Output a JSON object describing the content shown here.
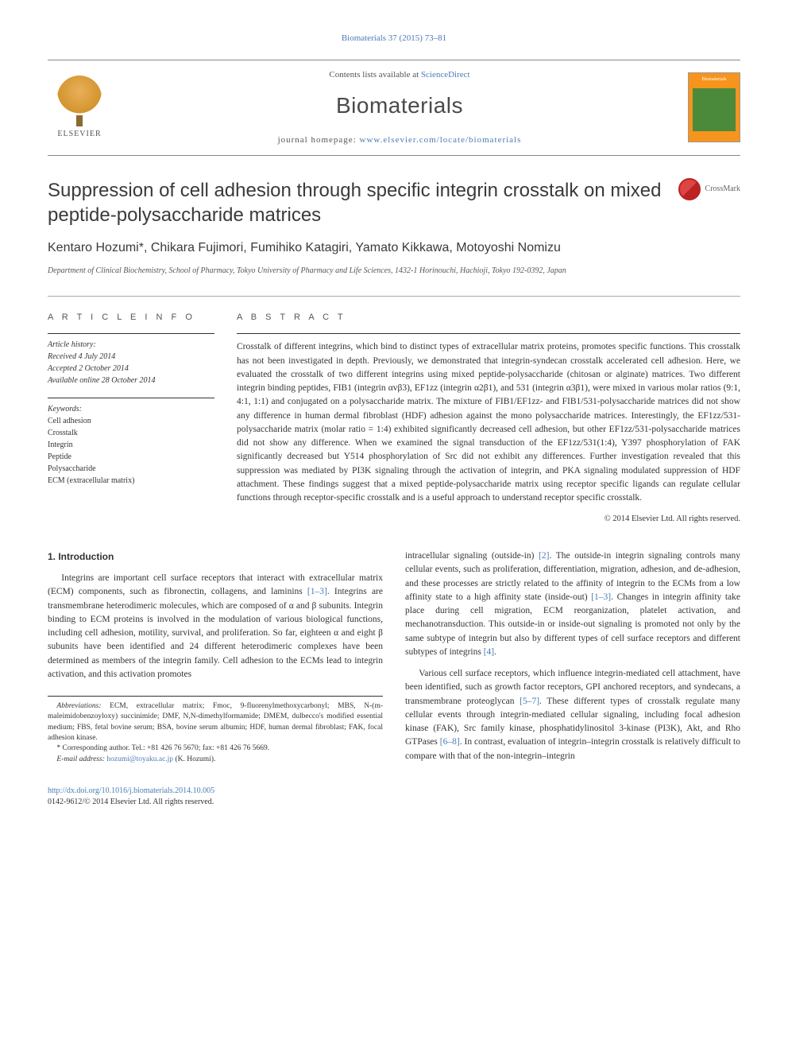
{
  "citation": "Biomaterials 37 (2015) 73–81",
  "header": {
    "contents_prefix": "Contents lists available at ",
    "contents_link": "ScienceDirect",
    "journal": "Biomaterials",
    "homepage_prefix": "journal homepage: ",
    "homepage_link": "www.elsevier.com/locate/biomaterials",
    "publisher": "ELSEVIER",
    "cover_label": "Biomaterials"
  },
  "article": {
    "title": "Suppression of cell adhesion through specific integrin crosstalk on mixed peptide-polysaccharide matrices",
    "crossmark": "CrossMark",
    "authors": "Kentaro Hozumi*, Chikara Fujimori, Fumihiko Katagiri, Yamato Kikkawa, Motoyoshi Nomizu",
    "affiliation": "Department of Clinical Biochemistry, School of Pharmacy, Tokyo University of Pharmacy and Life Sciences, 1432-1 Horinouchi, Hachioji, Tokyo 192-0392, Japan"
  },
  "info": {
    "heading": "A R T I C L E   I N F O",
    "history_label": "Article history:",
    "received": "Received 4 July 2014",
    "accepted": "Accepted 2 October 2014",
    "online": "Available online 28 October 2014",
    "keywords_label": "Keywords:",
    "keywords": [
      "Cell adhesion",
      "Crosstalk",
      "Integrin",
      "Peptide",
      "Polysaccharide",
      "ECM (extracellular matrix)"
    ]
  },
  "abstract": {
    "heading": "A B S T R A C T",
    "text": "Crosstalk of different integrins, which bind to distinct types of extracellular matrix proteins, promotes specific functions. This crosstalk has not been investigated in depth. Previously, we demonstrated that integrin-syndecan crosstalk accelerated cell adhesion. Here, we evaluated the crosstalk of two different integrins using mixed peptide-polysaccharide (chitosan or alginate) matrices. Two different integrin binding peptides, FIB1 (integrin αvβ3), EF1zz (integrin α2β1), and 531 (integrin α3β1), were mixed in various molar ratios (9:1, 4:1, 1:1) and conjugated on a polysaccharide matrix. The mixture of FIB1/EF1zz- and FIB1/531-polysaccharide matrices did not show any difference in human dermal fibroblast (HDF) adhesion against the mono polysaccharide matrices. Interestingly, the EF1zz/531-polysaccharide matrix (molar ratio = 1:4) exhibited significantly decreased cell adhesion, but other EF1zz/531-polysaccharide matrices did not show any difference. When we examined the signal transduction of the EF1zz/531(1:4), Y397 phosphorylation of FAK significantly decreased but Y514 phosphorylation of Src did not exhibit any differences. Further investigation revealed that this suppression was mediated by PI3K signaling through the activation of integrin, and PKA signaling modulated suppression of HDF attachment. These findings suggest that a mixed peptide-polysaccharide matrix using receptor specific ligands can regulate cellular functions through receptor-specific crosstalk and is a useful approach to understand receptor specific crosstalk.",
    "copyright": "© 2014 Elsevier Ltd. All rights reserved."
  },
  "intro": {
    "heading": "1. Introduction",
    "p1a": "Integrins are important cell surface receptors that interact with extracellular matrix (ECM) components, such as fibronectin, collagens, and laminins ",
    "p1_ref1": "[1–3]",
    "p1b": ". Integrins are transmembrane heterodimeric molecules, which are composed of α and β subunits. Integrin binding to ECM proteins is involved in the modulation of various biological functions, including cell adhesion, motility, survival, and proliferation. So far, eighteen α and eight β subunits have been identified and 24 different heterodimeric complexes have been determined as members of the integrin family. Cell adhesion to the ECMs lead to integrin activation, and this activation promotes",
    "p2a": "intracellular signaling (outside-in) ",
    "p2_ref1": "[2]",
    "p2b": ". The outside-in integrin signaling controls many cellular events, such as proliferation, differentiation, migration, adhesion, and de-adhesion, and these processes are strictly related to the affinity of integrin to the ECMs from a low affinity state to a high affinity state (inside-out) ",
    "p2_ref2": "[1–3]",
    "p2c": ". Changes in integrin affinity take place during cell migration, ECM reorganization, platelet activation, and mechanotransduction. This outside-in or inside-out signaling is promoted not only by the same subtype of integrin but also by different types of cell surface receptors and different subtypes of integrins ",
    "p2_ref3": "[4]",
    "p2d": ".",
    "p3a": "Various cell surface receptors, which influence integrin-mediated cell attachment, have been identified, such as growth factor receptors, GPI anchored receptors, and syndecans, a transmembrane proteoglycan ",
    "p3_ref1": "[5–7]",
    "p3b": ". These different types of crosstalk regulate many cellular events through integrin-mediated cellular signaling, including focal adhesion kinase (FAK), Src family kinase, phosphatidylinositol 3-kinase (PI3K), Akt, and Rho GTPases ",
    "p3_ref2": "[6–8]",
    "p3c": ". In contrast, evaluation of integrin–integrin crosstalk is relatively difficult to compare with that of the non-integrin–integrin"
  },
  "footnotes": {
    "abbrev_label": "Abbreviations:",
    "abbrev": " ECM, extracellular matrix; Fmoc, 9-fluorenylmethoxycarbonyl; MBS, N-(m-maleimidobenzoyloxy) succinimide; DMF, N,N-dimethylformamide; DMEM, dulbecco's modified essential medium; FBS, fetal bovine serum; BSA, bovine serum albumin; HDF, human dermal fibroblast; FAK, focal adhesion kinase.",
    "corr": "* Corresponding author. Tel.: +81 426 76 5670; fax: +81 426 76 5669.",
    "email_label": "E-mail address: ",
    "email": "hozumi@toyaku.ac.jp",
    "email_suffix": " (K. Hozumi)."
  },
  "bottom": {
    "doi": "http://dx.doi.org/10.1016/j.biomaterials.2014.10.005",
    "issn_line": "0142-9612/© 2014 Elsevier Ltd. All rights reserved."
  },
  "colors": {
    "link": "#4a7bb5",
    "text": "#333333",
    "cover_bg": "#f7941d",
    "cover_img": "#4a8a3a"
  }
}
